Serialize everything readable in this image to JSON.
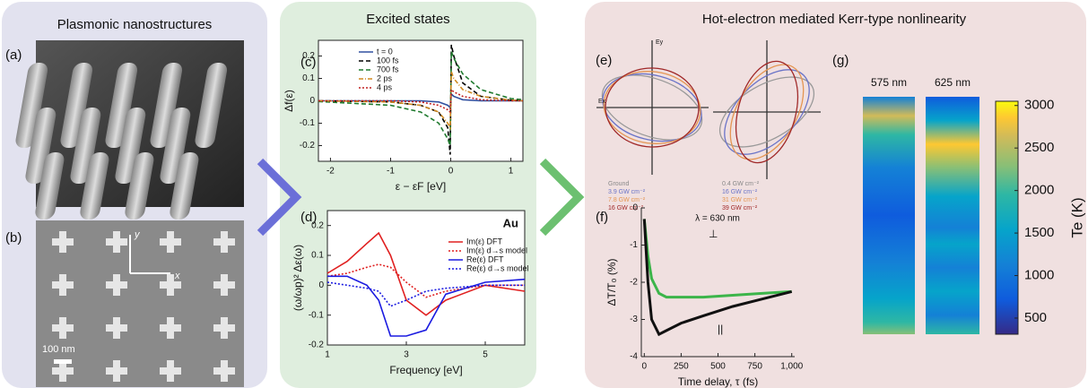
{
  "panels": [
    {
      "title": "Plasmonic nanostructures"
    },
    {
      "title": "Excited states"
    },
    {
      "title": "Hot-electron mediated Kerr-type nonlinearity"
    }
  ],
  "panel_labels": [
    "(a)",
    "(b)",
    "(c)",
    "(d)",
    "(e)",
    "(f)",
    "(g)"
  ],
  "panel_b": {
    "scale_bar": "100 nm",
    "x_axis": "x",
    "y_axis": "y"
  },
  "panel_e": {
    "axis_labels": [
      "Ey",
      "Ex"
    ],
    "left_legend": [
      "Ground",
      "3.9 GW cm⁻²",
      "7.8 GW cm⁻²",
      "16 GW cm⁻²"
    ],
    "right_legend": [
      "0.4 GW cm⁻²",
      "16 GW cm⁻²",
      "31 GW cm⁻²",
      "39 GW cm⁻²"
    ]
  },
  "chart_data": [
    {
      "type": "line",
      "xlabel": "ε − εF [eV]",
      "ylabel": "Δf(ε)",
      "xlim": [
        -2.2,
        1.2
      ],
      "ylim": [
        -0.27,
        0.27
      ],
      "xticks": [
        -2,
        -1,
        0,
        1
      ],
      "yticks": [
        -0.2,
        -0.1,
        0,
        0.1,
        0.2
      ],
      "x": [
        -2.2,
        -1,
        -0.5,
        -0.2,
        -0.05,
        -0.01,
        0.01,
        0.05,
        0.2,
        0.5,
        1,
        1.2
      ],
      "series": [
        {
          "name": "t = 0",
          "color": "#3050a0",
          "style": "solid",
          "values": [
            0,
            0,
            0,
            -0.005,
            -0.02,
            -0.03,
            0.03,
            0.02,
            0.005,
            0,
            0,
            0
          ]
        },
        {
          "name": "100 fs",
          "color": "#000000",
          "style": "dashed",
          "values": [
            0,
            -0.005,
            -0.02,
            -0.05,
            -0.12,
            -0.24,
            0.25,
            0.2,
            0.08,
            0.02,
            0.003,
            0
          ]
        },
        {
          "name": "700 fs",
          "color": "#1f7a2e",
          "style": "dashed",
          "values": [
            -0.003,
            -0.02,
            -0.05,
            -0.1,
            -0.17,
            -0.2,
            0.22,
            0.19,
            0.12,
            0.05,
            0.01,
            0.005
          ]
        },
        {
          "name": "2 ps",
          "color": "#d08a20",
          "style": "dashdot",
          "values": [
            0,
            -0.005,
            -0.02,
            -0.05,
            -0.1,
            -0.12,
            0.13,
            0.1,
            0.05,
            0.02,
            0.003,
            0
          ]
        },
        {
          "name": "4 ps",
          "color": "#c02020",
          "style": "dotted",
          "values": [
            0,
            0,
            -0.005,
            -0.02,
            -0.04,
            -0.05,
            0.05,
            0.04,
            0.02,
            0.005,
            0,
            0
          ]
        }
      ]
    },
    {
      "type": "line",
      "xlabel": "Frequency [eV]",
      "ylabel": "(ω/ωp)² Δε(ω)",
      "annotation": "Au",
      "xlim": [
        1,
        6
      ],
      "ylim": [
        -0.2,
        0.25
      ],
      "xticks": [
        1,
        3,
        5
      ],
      "yticks": [
        -0.2,
        -0.1,
        0,
        0.1,
        0.2
      ],
      "x": [
        1,
        1.5,
        2,
        2.3,
        2.6,
        3,
        3.5,
        4,
        5,
        6
      ],
      "series": [
        {
          "name": "Im(ε) DFT",
          "color": "#e02020",
          "style": "solid",
          "values": [
            0.04,
            0.08,
            0.14,
            0.175,
            0.1,
            -0.05,
            -0.1,
            -0.05,
            0,
            -0.02
          ]
        },
        {
          "name": "Im(ε) d→s model",
          "color": "#e02020",
          "style": "dotted",
          "values": [
            0.03,
            0.04,
            0.06,
            0.07,
            0.06,
            0.01,
            -0.04,
            -0.02,
            0,
            0
          ]
        },
        {
          "name": "Re(ε) DFT",
          "color": "#1a1ae0",
          "style": "solid",
          "values": [
            0.03,
            0.03,
            0.0,
            -0.05,
            -0.17,
            -0.17,
            -0.15,
            -0.03,
            0.01,
            0.02
          ]
        },
        {
          "name": "Re(ε) d→s model",
          "color": "#1a1ae0",
          "style": "dotted",
          "values": [
            0.01,
            0.0,
            -0.01,
            -0.02,
            -0.07,
            -0.05,
            -0.02,
            -0.01,
            0,
            0
          ]
        }
      ]
    },
    {
      "type": "line",
      "xlabel": "Time delay, τ (fs)",
      "ylabel": "ΔT/T₀ (%)",
      "annotation": "λ = 630 nm",
      "xlim": [
        -20,
        1020
      ],
      "ylim": [
        -4,
        0
      ],
      "xticks": [
        0,
        250,
        500,
        750,
        {
          "value": 1000,
          "label": "1,000"
        }
      ],
      "yticks": [
        -4,
        -3,
        -2,
        -1,
        0
      ],
      "x": [
        0,
        25,
        50,
        100,
        150,
        250,
        400,
        600,
        800,
        1000
      ],
      "series": [
        {
          "name": "⊥",
          "color": "#3cb54a",
          "style": "solid",
          "values": [
            -0.3,
            -1.3,
            -1.9,
            -2.3,
            -2.4,
            -2.4,
            -2.4,
            -2.35,
            -2.3,
            -2.25
          ]
        },
        {
          "name": "||",
          "color": "#111111",
          "style": "solid",
          "values": [
            -0.3,
            -2,
            -3,
            -3.4,
            -3.3,
            -3.1,
            -2.9,
            -2.65,
            -2.45,
            -2.25
          ]
        }
      ]
    },
    {
      "type": "heatmap",
      "columns": [
        "575 nm",
        "625 nm"
      ],
      "colorbar_label": "Te (K)",
      "ylim": [
        310,
        3050
      ],
      "yticks": [
        500,
        1000,
        1500,
        2000,
        2500,
        3000
      ]
    }
  ]
}
